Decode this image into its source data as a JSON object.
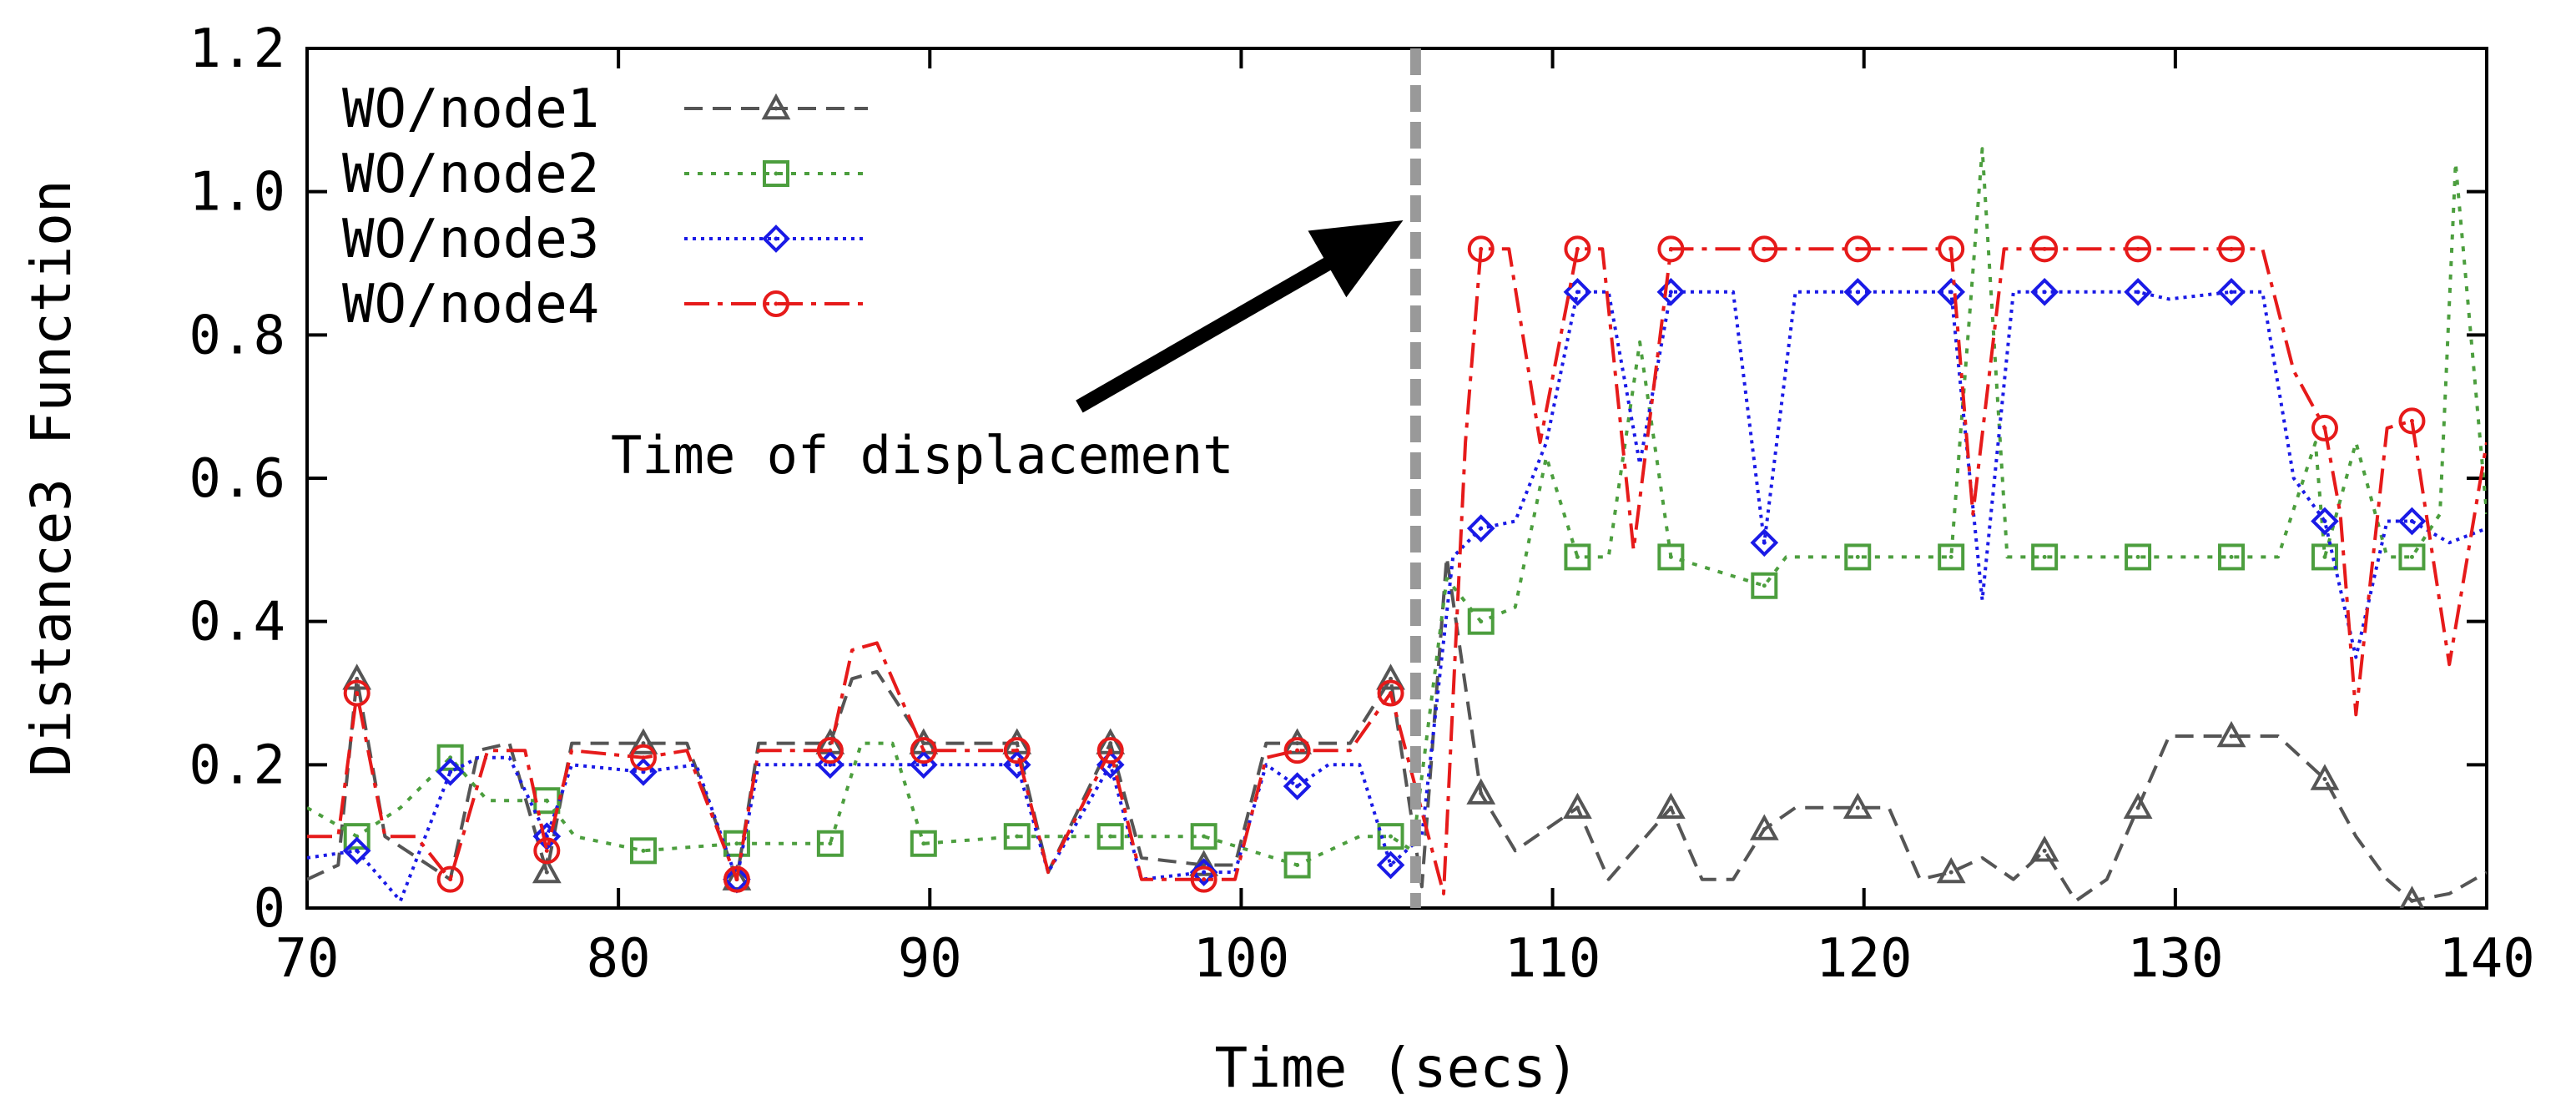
{
  "chart_data": {
    "type": "line",
    "title": "",
    "xlabel": "Time (secs)",
    "ylabel": "Distance3 Function",
    "xlim": [
      70,
      140
    ],
    "ylim": [
      0,
      1.2
    ],
    "xticks": [
      70,
      80,
      90,
      100,
      110,
      120,
      130,
      140
    ],
    "yticks": [
      0,
      0.2,
      0.4,
      0.6,
      0.8,
      1.0,
      1.2
    ],
    "ytick_labels": [
      "0",
      "0.2",
      "0.4",
      "0.6",
      "0.8",
      "1.0",
      "1.2"
    ],
    "legend_position": "top-left",
    "annotation": {
      "text": "Time of displacement",
      "displacement_time": 105.6,
      "arrow_from": [
        94.8,
        0.7
      ],
      "arrow_to": [
        105.2,
        0.96
      ]
    },
    "series": [
      {
        "name": "WO/node1",
        "color": "#555555",
        "dash": "22,12",
        "marker": "triangle",
        "points": [
          [
            70,
            0.04
          ],
          [
            71,
            0.06
          ],
          [
            71.6,
            0.32
          ],
          [
            72.5,
            0.1
          ],
          [
            74.6,
            0.04
          ],
          [
            75.5,
            0.22
          ],
          [
            76.5,
            0.23
          ],
          [
            77.7,
            0.05
          ],
          [
            78.5,
            0.23
          ],
          [
            80.8,
            0.23
          ],
          [
            82.2,
            0.23
          ],
          [
            83.8,
            0.04
          ],
          [
            84.5,
            0.23
          ],
          [
            86.8,
            0.23
          ],
          [
            87.5,
            0.32
          ],
          [
            88.3,
            0.33
          ],
          [
            89.8,
            0.23
          ],
          [
            92.8,
            0.23
          ],
          [
            93.8,
            0.05
          ],
          [
            95.8,
            0.23
          ],
          [
            96.8,
            0.07
          ],
          [
            98.8,
            0.06
          ],
          [
            99.8,
            0.06
          ],
          [
            100.8,
            0.23
          ],
          [
            101.8,
            0.23
          ],
          [
            103.5,
            0.23
          ],
          [
            104.8,
            0.32
          ],
          [
            105.8,
            0.03
          ],
          [
            106.6,
            0.49
          ],
          [
            107.7,
            0.16
          ],
          [
            108.8,
            0.08
          ],
          [
            110.8,
            0.14
          ],
          [
            111.8,
            0.04
          ],
          [
            113.8,
            0.14
          ],
          [
            114.8,
            0.04
          ],
          [
            115.8,
            0.04
          ],
          [
            116.8,
            0.11
          ],
          [
            117.8,
            0.14
          ],
          [
            119.8,
            0.14
          ],
          [
            120.8,
            0.14
          ],
          [
            121.8,
            0.04
          ],
          [
            122.8,
            0.05
          ],
          [
            123.8,
            0.07
          ],
          [
            124.8,
            0.04
          ],
          [
            125.8,
            0.08
          ],
          [
            126.8,
            0.01
          ],
          [
            127.8,
            0.04
          ],
          [
            128.8,
            0.14
          ],
          [
            129.8,
            0.24
          ],
          [
            131.8,
            0.24
          ],
          [
            133.3,
            0.24
          ],
          [
            134.8,
            0.18
          ],
          [
            135.8,
            0.1
          ],
          [
            136.8,
            0.04
          ],
          [
            137.6,
            0.01
          ],
          [
            138.8,
            0.02
          ],
          [
            140,
            0.05
          ]
        ],
        "marker_x": [
          71.6,
          77.7,
          80.8,
          83.8,
          86.8,
          89.8,
          92.8,
          95.8,
          98.8,
          101.8,
          104.8,
          107.7,
          110.8,
          113.8,
          116.8,
          119.8,
          122.8,
          125.8,
          128.8,
          131.8,
          134.8,
          137.6
        ]
      },
      {
        "name": "WO/node2",
        "color": "#4c9e3e",
        "dash": "6,10",
        "marker": "square",
        "points": [
          [
            70,
            0.14
          ],
          [
            71.6,
            0.1
          ],
          [
            73,
            0.14
          ],
          [
            74.6,
            0.21
          ],
          [
            75.8,
            0.15
          ],
          [
            77.7,
            0.15
          ],
          [
            78.6,
            0.1
          ],
          [
            80.8,
            0.08
          ],
          [
            83.8,
            0.09
          ],
          [
            86.8,
            0.09
          ],
          [
            87.8,
            0.23
          ],
          [
            88.8,
            0.23
          ],
          [
            89.8,
            0.09
          ],
          [
            92.8,
            0.1
          ],
          [
            95.8,
            0.1
          ],
          [
            98.8,
            0.1
          ],
          [
            101.8,
            0.06
          ],
          [
            103.8,
            0.1
          ],
          [
            104.8,
            0.1
          ],
          [
            105.5,
            0.08
          ],
          [
            106.6,
            0.46
          ],
          [
            107.7,
            0.4
          ],
          [
            108.8,
            0.42
          ],
          [
            109.8,
            0.63
          ],
          [
            110.8,
            0.49
          ],
          [
            111.8,
            0.49
          ],
          [
            112.8,
            0.79
          ],
          [
            113.8,
            0.49
          ],
          [
            116.8,
            0.45
          ],
          [
            117.5,
            0.49
          ],
          [
            119.8,
            0.49
          ],
          [
            122.8,
            0.49
          ],
          [
            123.8,
            1.06
          ],
          [
            124.6,
            0.49
          ],
          [
            125.8,
            0.49
          ],
          [
            128.8,
            0.49
          ],
          [
            131.8,
            0.49
          ],
          [
            133.3,
            0.49
          ],
          [
            134.5,
            0.65
          ],
          [
            134.8,
            0.49
          ],
          [
            135.8,
            0.65
          ],
          [
            136.8,
            0.49
          ],
          [
            137.6,
            0.49
          ],
          [
            138.5,
            0.55
          ],
          [
            139,
            1.04
          ],
          [
            140,
            0.55
          ]
        ],
        "marker_x": [
          71.6,
          74.6,
          77.7,
          80.8,
          83.8,
          86.8,
          89.8,
          92.8,
          95.8,
          98.8,
          101.8,
          104.8,
          107.7,
          110.8,
          113.8,
          116.8,
          119.8,
          122.8,
          125.8,
          128.8,
          131.8,
          134.8,
          137.6
        ]
      },
      {
        "name": "WO/node3",
        "color": "#1a1ae6",
        "dash": "4,6",
        "marker": "diamond",
        "points": [
          [
            70,
            0.07
          ],
          [
            71.6,
            0.08
          ],
          [
            73,
            0.01
          ],
          [
            74.6,
            0.19
          ],
          [
            75.5,
            0.21
          ],
          [
            76.5,
            0.21
          ],
          [
            77.7,
            0.1
          ],
          [
            78.5,
            0.2
          ],
          [
            80.8,
            0.19
          ],
          [
            82.5,
            0.2
          ],
          [
            83.8,
            0.04
          ],
          [
            84.5,
            0.2
          ],
          [
            86.8,
            0.2
          ],
          [
            89.8,
            0.2
          ],
          [
            92.8,
            0.2
          ],
          [
            93.8,
            0.05
          ],
          [
            95.8,
            0.2
          ],
          [
            96.8,
            0.04
          ],
          [
            98.8,
            0.05
          ],
          [
            99.8,
            0.05
          ],
          [
            100.8,
            0.2
          ],
          [
            101.8,
            0.17
          ],
          [
            102.8,
            0.2
          ],
          [
            103.8,
            0.2
          ],
          [
            104.8,
            0.06
          ],
          [
            105.8,
            0.1
          ],
          [
            106.8,
            0.49
          ],
          [
            107.7,
            0.53
          ],
          [
            108.8,
            0.54
          ],
          [
            109.8,
            0.65
          ],
          [
            110.8,
            0.86
          ],
          [
            111.8,
            0.86
          ],
          [
            112.8,
            0.62
          ],
          [
            113.8,
            0.86
          ],
          [
            115.8,
            0.86
          ],
          [
            116.8,
            0.51
          ],
          [
            117.8,
            0.86
          ],
          [
            119.8,
            0.86
          ],
          [
            122.8,
            0.86
          ],
          [
            123.8,
            0.43
          ],
          [
            124.8,
            0.86
          ],
          [
            125.8,
            0.86
          ],
          [
            127.8,
            0.86
          ],
          [
            128.8,
            0.86
          ],
          [
            129.8,
            0.85
          ],
          [
            131.8,
            0.86
          ],
          [
            132.8,
            0.86
          ],
          [
            133.8,
            0.6
          ],
          [
            134.8,
            0.54
          ],
          [
            135.8,
            0.35
          ],
          [
            136.8,
            0.54
          ],
          [
            137.6,
            0.54
          ],
          [
            138.8,
            0.51
          ],
          [
            140,
            0.53
          ]
        ],
        "marker_x": [
          71.6,
          74.6,
          77.7,
          80.8,
          83.8,
          86.8,
          89.8,
          92.8,
          95.8,
          98.8,
          101.8,
          104.8,
          107.7,
          110.8,
          113.8,
          116.8,
          119.8,
          122.8,
          125.8,
          128.8,
          131.8,
          134.8,
          137.6
        ]
      },
      {
        "name": "WO/node4",
        "color": "#e61a1a",
        "dash": "30,10,6,10",
        "marker": "circle",
        "points": [
          [
            70,
            0.1
          ],
          [
            71,
            0.1
          ],
          [
            71.6,
            0.3
          ],
          [
            72.5,
            0.1
          ],
          [
            73.5,
            0.1
          ],
          [
            74.6,
            0.04
          ],
          [
            75.8,
            0.22
          ],
          [
            77,
            0.22
          ],
          [
            77.7,
            0.08
          ],
          [
            78.5,
            0.22
          ],
          [
            80.8,
            0.21
          ],
          [
            82.2,
            0.22
          ],
          [
            83.8,
            0.04
          ],
          [
            84.5,
            0.22
          ],
          [
            86.8,
            0.22
          ],
          [
            87.5,
            0.36
          ],
          [
            88.3,
            0.37
          ],
          [
            89.8,
            0.22
          ],
          [
            92.8,
            0.22
          ],
          [
            93.8,
            0.05
          ],
          [
            95.8,
            0.22
          ],
          [
            96.8,
            0.04
          ],
          [
            98.8,
            0.04
          ],
          [
            99.8,
            0.04
          ],
          [
            100.8,
            0.21
          ],
          [
            101.8,
            0.22
          ],
          [
            103.5,
            0.22
          ],
          [
            104.8,
            0.3
          ],
          [
            106.5,
            0.02
          ],
          [
            107.2,
            0.65
          ],
          [
            107.7,
            0.92
          ],
          [
            108.6,
            0.92
          ],
          [
            109.6,
            0.65
          ],
          [
            110.8,
            0.92
          ],
          [
            111.6,
            0.92
          ],
          [
            112.6,
            0.5
          ],
          [
            113.8,
            0.92
          ],
          [
            116.8,
            0.92
          ],
          [
            119.8,
            0.92
          ],
          [
            122.8,
            0.92
          ],
          [
            123.5,
            0.55
          ],
          [
            124.5,
            0.92
          ],
          [
            125.8,
            0.92
          ],
          [
            128.8,
            0.92
          ],
          [
            131.8,
            0.92
          ],
          [
            132.8,
            0.92
          ],
          [
            133.8,
            0.75
          ],
          [
            134.8,
            0.67
          ],
          [
            135.3,
            0.55
          ],
          [
            135.8,
            0.27
          ],
          [
            136.8,
            0.67
          ],
          [
            137.6,
            0.68
          ],
          [
            138.8,
            0.34
          ],
          [
            140,
            0.65
          ]
        ],
        "marker_x": [
          71.6,
          74.6,
          77.7,
          80.8,
          83.8,
          86.8,
          89.8,
          92.8,
          95.8,
          98.8,
          101.8,
          104.8,
          107.7,
          110.8,
          113.8,
          116.8,
          119.8,
          122.8,
          125.8,
          128.8,
          131.8,
          134.8,
          137.6
        ]
      }
    ]
  }
}
